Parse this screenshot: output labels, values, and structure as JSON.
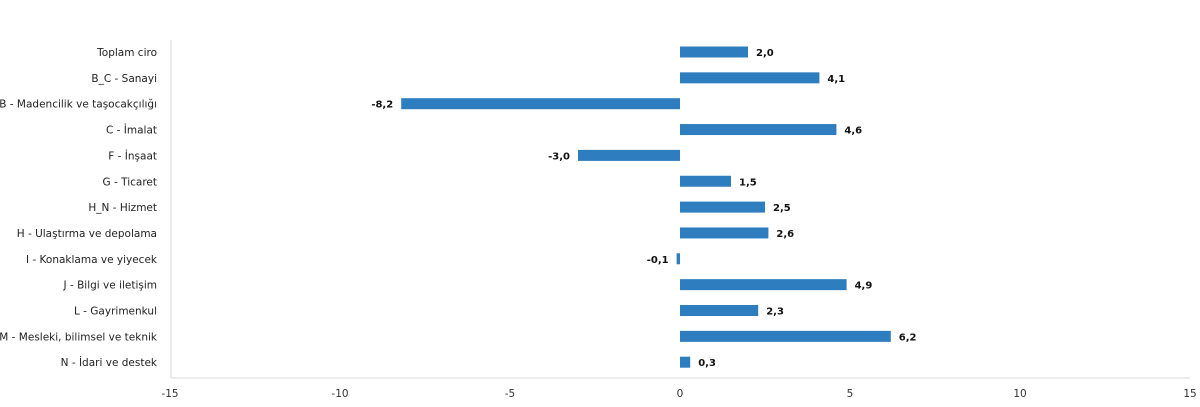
{
  "chart_data": {
    "type": "bar",
    "orientation": "horizontal",
    "title": "",
    "xlabel": "",
    "ylabel": "",
    "xlim": [
      -15,
      15
    ],
    "xticks": [
      -15,
      -10,
      -5,
      0,
      5,
      10,
      15
    ],
    "categories": [
      "Toplam ciro",
      "B_C - Sanayi",
      "B - Madencilik ve taşocakçılığı",
      "C - İmalat",
      "F - İnşaat",
      "G - Ticaret",
      "H_N - Hizmet",
      "H - Ulaştırma ve depolama",
      "I - Konaklama ve yiyecek",
      "J - Bilgi ve iletişim",
      "L - Gayrimenkul",
      "M - Mesleki, bilimsel ve teknik",
      "N - İdari ve destek"
    ],
    "values": [
      2.0,
      4.1,
      -8.2,
      4.6,
      -3.0,
      1.5,
      2.5,
      2.6,
      -0.1,
      4.9,
      2.3,
      6.2,
      0.3
    ],
    "value_labels": [
      "2,0",
      "4,1",
      "-8,2",
      "4,6",
      "-3,0",
      "1,5",
      "2,5",
      "2,6",
      "-0,1",
      "4,9",
      "2,3",
      "6,2",
      "0,3"
    ],
    "bar_color": "#2e7ebf",
    "grid": false
  }
}
